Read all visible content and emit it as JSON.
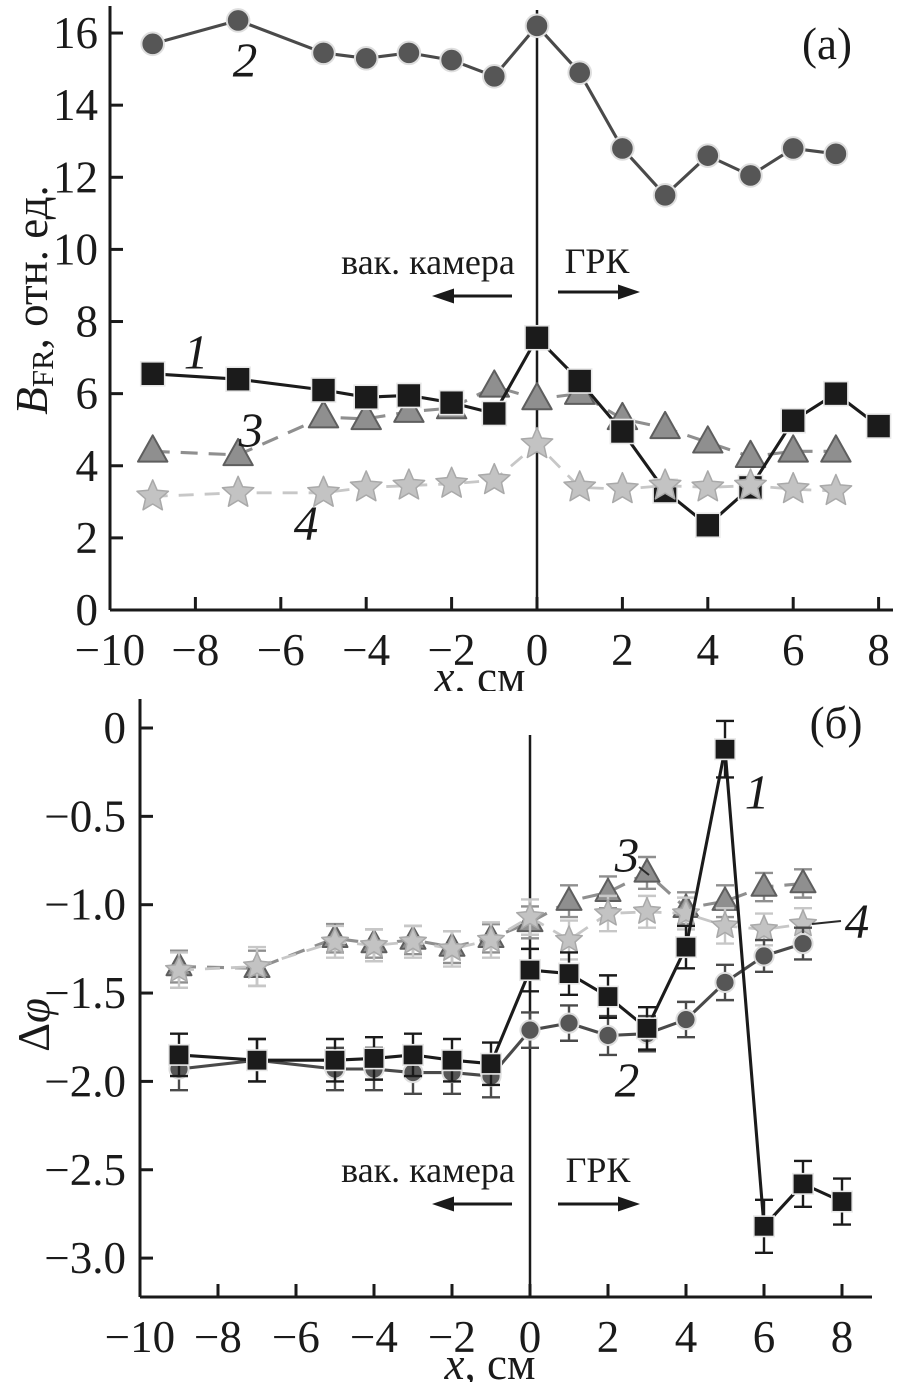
{
  "figure": {
    "description": "Two stacked measurement plots vs axial coordinate x",
    "background_color": "#ffffff",
    "axis_color": "#1a1a1a"
  },
  "chart_data": [
    {
      "panel_label": "(а)",
      "type": "line",
      "xlabel": {
        "italic": "x",
        "regular": ", см"
      },
      "ylabel": {
        "italic": "B",
        "sub": "FR",
        "regular": ", отн. ед."
      },
      "xlim": [
        -10,
        8.45
      ],
      "ylim": [
        0,
        16.8
      ],
      "grid": false,
      "vline_x": 0,
      "xticks": [
        -10,
        -8,
        -6,
        -4,
        -2,
        0,
        2,
        4,
        6,
        8
      ],
      "xtick_labels": [
        "−10",
        "−8",
        "−6",
        "−4",
        "−2",
        "0",
        "2",
        "4",
        "6",
        "8"
      ],
      "yticks": [
        0,
        2,
        4,
        6,
        8,
        10,
        12,
        14,
        16
      ],
      "ytick_labels": [
        "0",
        "2",
        "4",
        "6",
        "8",
        "10",
        "12",
        "14",
        "16"
      ],
      "annotations": {
        "vacuum_chamber": "вак. камера",
        "discharge_chamber": "ГРК"
      },
      "series": [
        {
          "label": "1",
          "marker": "square",
          "line_style": "solid",
          "color": "#1b1b1b",
          "line_color": "#1b1b1b",
          "edge": "#e8e8e8",
          "x": [
            -9,
            -7,
            -5,
            -4,
            -3,
            -2,
            -1,
            0,
            1,
            2,
            3,
            4,
            5,
            6,
            7,
            8
          ],
          "y": [
            6.55,
            6.4,
            6.1,
            5.9,
            5.95,
            5.75,
            5.45,
            7.55,
            6.35,
            4.95,
            3.3,
            2.35,
            3.4,
            5.25,
            6.0,
            5.1
          ]
        },
        {
          "label": "2",
          "marker": "circle",
          "line_style": "solid",
          "color": "#565656",
          "line_color": "#4a4a4a",
          "edge": "#dedede",
          "x": [
            -9,
            -7,
            -5,
            -4,
            -3,
            -2,
            -1,
            0,
            1,
            2,
            3,
            4,
            5,
            6,
            7
          ],
          "y": [
            15.7,
            16.35,
            15.45,
            15.3,
            15.45,
            15.25,
            14.8,
            16.2,
            14.9,
            12.8,
            11.5,
            12.6,
            12.05,
            12.8,
            12.65
          ]
        },
        {
          "label": "3",
          "marker": "triangle",
          "line_style": "dashed",
          "color": "#8f8f8f",
          "line_color": "#8f8f8f",
          "edge": "#5e5e5e",
          "x": [
            -9,
            -7,
            -5,
            -4,
            -3,
            -2,
            -1,
            0,
            1,
            2,
            3,
            4,
            5,
            6,
            7
          ],
          "y": [
            4.4,
            4.3,
            5.35,
            5.3,
            5.5,
            5.6,
            6.2,
            5.85,
            6.0,
            5.3,
            5.05,
            4.65,
            4.25,
            4.4,
            4.4
          ]
        },
        {
          "label": "4",
          "marker": "star",
          "line_style": "dashed",
          "color": "#c3c3c3",
          "line_color": "#c7c7c7",
          "edge": "#a9a9a9",
          "x": [
            -9,
            -7,
            -5,
            -4,
            -3,
            -2,
            -1,
            0,
            1,
            2,
            3,
            4,
            5,
            6,
            7
          ],
          "y": [
            3.15,
            3.25,
            3.25,
            3.4,
            3.45,
            3.5,
            3.6,
            4.6,
            3.4,
            3.35,
            3.45,
            3.4,
            3.45,
            3.35,
            3.3
          ]
        }
      ]
    },
    {
      "panel_label": "(б)",
      "type": "line",
      "xlabel": {
        "italic": "x",
        "regular": ", см"
      },
      "ylabel": {
        "regular": "Δ",
        "italic_after": "φ"
      },
      "xlim": [
        -10,
        8.45
      ],
      "ylim": [
        -3.22,
        0.19
      ],
      "grid": false,
      "vline_x": 0,
      "xticks": [
        -10,
        -8,
        -6,
        -4,
        -2,
        0,
        2,
        4,
        6,
        8
      ],
      "xtick_labels": [
        "−10",
        "−8",
        "−6",
        "−4",
        "−2",
        "0",
        "2",
        "4",
        "6",
        "8"
      ],
      "yticks": [
        0,
        -0.5,
        -1.0,
        -1.5,
        -2.0,
        -2.5,
        -3.0
      ],
      "ytick_labels": [
        "0",
        "−0.5",
        "−1.0",
        "−1.5",
        "−2.0",
        "−2.5",
        "−3.0"
      ],
      "annotations": {
        "vacuum_chamber": "вак. камера",
        "discharge_chamber": "ГРК"
      },
      "series": [
        {
          "label": "1",
          "marker": "square",
          "line_style": "solid",
          "color": "#1b1b1b",
          "line_color": "#1b1b1b",
          "edge": "#e8e8e8",
          "x": [
            -9,
            -7,
            -5,
            -4,
            -3,
            -2,
            -1,
            0,
            1,
            2,
            3,
            4,
            5,
            6,
            7,
            8
          ],
          "y": [
            -1.85,
            -1.88,
            -1.88,
            -1.87,
            -1.85,
            -1.88,
            -1.9,
            -1.37,
            -1.39,
            -1.52,
            -1.7,
            -1.24,
            -0.12,
            -2.82,
            -2.58,
            -2.68
          ],
          "err": [
            0.12,
            0.12,
            0.12,
            0.12,
            0.12,
            0.12,
            0.12,
            0.12,
            0.12,
            0.12,
            0.12,
            0.12,
            0.16,
            0.15,
            0.13,
            0.13
          ]
        },
        {
          "label": "2",
          "marker": "circle",
          "line_style": "solid",
          "color": "#565656",
          "line_color": "#4a4a4a",
          "edge": "#dedede",
          "x": [
            -9,
            -7,
            -5,
            -4,
            -3,
            -2,
            -1,
            0,
            1,
            2,
            3,
            4,
            5,
            6,
            7
          ],
          "y": [
            -1.93,
            -1.88,
            -1.93,
            -1.93,
            -1.95,
            -1.95,
            -1.97,
            -1.71,
            -1.67,
            -1.74,
            -1.73,
            -1.65,
            -1.44,
            -1.29,
            -1.22
          ],
          "err": [
            0.12,
            0.12,
            0.12,
            0.12,
            0.12,
            0.12,
            0.12,
            0.1,
            0.1,
            0.11,
            0.1,
            0.1,
            0.1,
            0.09,
            0.09
          ]
        },
        {
          "label": "3",
          "marker": "triangle",
          "line_style": "dashed",
          "color": "#8f8f8f",
          "line_color": "#8f8f8f",
          "edge": "#5e5e5e",
          "x": [
            -9,
            -7,
            -5,
            -4,
            -3,
            -2,
            -1,
            0,
            1,
            2,
            3,
            4,
            5,
            6,
            7
          ],
          "y": [
            -1.35,
            -1.36,
            -1.19,
            -1.22,
            -1.2,
            -1.24,
            -1.19,
            -1.1,
            -0.98,
            -0.93,
            -0.82,
            -1.02,
            -0.98,
            -0.9,
            -0.88
          ],
          "err": [
            0.09,
            0.1,
            0.08,
            0.08,
            0.08,
            0.09,
            0.08,
            0.09,
            0.09,
            0.09,
            0.09,
            0.09,
            0.09,
            0.08,
            0.08
          ]
        },
        {
          "label": "4",
          "marker": "star",
          "line_style": "dashed",
          "color": "#c3c3c3",
          "line_color": "#c7c7c7",
          "edge": "#a9a9a9",
          "x": [
            -9,
            -7,
            -5,
            -4,
            -3,
            -2,
            -1,
            0,
            1,
            2,
            3,
            4,
            5,
            6,
            7
          ],
          "y": [
            -1.37,
            -1.35,
            -1.21,
            -1.23,
            -1.21,
            -1.25,
            -1.2,
            -1.07,
            -1.2,
            -1.05,
            -1.04,
            -1.05,
            -1.12,
            -1.14,
            -1.11
          ],
          "err": [
            0.1,
            0.11,
            0.09,
            0.09,
            0.09,
            0.1,
            0.1,
            0.1,
            0.11,
            0.1,
            0.09,
            0.09,
            0.1,
            0.09,
            0.09
          ]
        }
      ]
    }
  ]
}
